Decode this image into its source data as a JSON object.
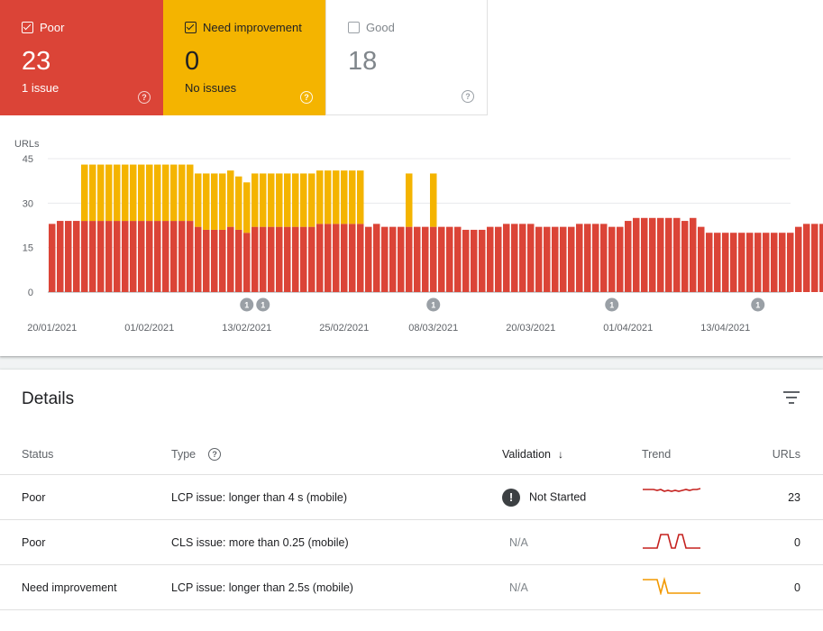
{
  "tiles": {
    "poor": {
      "label": "Poor",
      "count": "23",
      "sub": "1 issue",
      "checked": true,
      "color": "#db4437"
    },
    "need": {
      "label": "Need improvement",
      "count": "0",
      "sub": "No issues",
      "checked": true,
      "color": "#f4b400"
    },
    "good": {
      "label": "Good",
      "count": "18",
      "checked": false
    }
  },
  "help_glyph": "?",
  "chart_data": {
    "type": "bar",
    "stacked": true,
    "ylabel": "URLs",
    "yticks": [
      "0",
      "15",
      "30",
      "45"
    ],
    "ylim": [
      0,
      45
    ],
    "xtick_labels": [
      "20/01/2021",
      "01/02/2021",
      "13/02/2021",
      "25/02/2021",
      "08/03/2021",
      "20/03/2021",
      "01/04/2021",
      "13/04/2021"
    ],
    "start_date": "2021-01-20",
    "series": [
      {
        "name": "Poor",
        "color": "#db4437",
        "values": [
          23,
          24,
          24,
          24,
          24,
          24,
          24,
          24,
          24,
          24,
          24,
          24,
          24,
          24,
          24,
          24,
          24,
          24,
          22,
          21,
          21,
          21,
          22,
          21,
          20,
          22,
          22,
          22,
          22,
          22,
          22,
          22,
          22,
          23,
          23,
          23,
          23,
          23,
          23,
          22,
          23,
          22,
          22,
          22,
          22,
          22,
          22,
          22,
          22,
          22,
          22,
          21,
          21,
          21,
          22,
          22,
          23,
          23,
          23,
          23,
          22,
          22,
          22,
          22,
          22,
          23,
          23,
          23,
          23,
          22,
          22,
          24,
          25,
          25,
          25,
          25,
          25,
          25,
          24,
          25,
          22,
          20,
          20,
          20,
          20,
          20,
          20,
          20,
          20,
          20,
          20,
          20,
          22,
          23,
          23,
          23,
          24,
          24,
          23
        ]
      },
      {
        "name": "Need improvement",
        "color": "#f4b400",
        "values": [
          0,
          0,
          0,
          0,
          19,
          19,
          19,
          19,
          19,
          19,
          19,
          19,
          19,
          19,
          19,
          19,
          19,
          19,
          18,
          19,
          19,
          19,
          19,
          18,
          17,
          18,
          18,
          18,
          18,
          18,
          18,
          18,
          18,
          18,
          18,
          18,
          18,
          18,
          18,
          0,
          0,
          0,
          0,
          0,
          18,
          0,
          0,
          18,
          0,
          0,
          0,
          0,
          0,
          0,
          0,
          0,
          0,
          0,
          0,
          0,
          0,
          0,
          0,
          0,
          0,
          0,
          0,
          0,
          0,
          0,
          0,
          0,
          0,
          0,
          0,
          0,
          0,
          0,
          0,
          0,
          0,
          0,
          0,
          0,
          0,
          0,
          0,
          0,
          0,
          0,
          0,
          0,
          0,
          0,
          0,
          0,
          0,
          0,
          0
        ]
      }
    ],
    "annotations": [
      {
        "date": "2021-02-13",
        "label": "1"
      },
      {
        "date": "2021-02-15",
        "label": "1"
      },
      {
        "date": "2021-03-08",
        "label": "1"
      },
      {
        "date": "2021-03-30",
        "label": "1"
      },
      {
        "date": "2021-04-17",
        "label": "1"
      }
    ],
    "grid": true
  },
  "details": {
    "title": "Details",
    "headers": {
      "status": "Status",
      "type": "Type",
      "validation": "Validation",
      "trend": "Trend",
      "urls": "URLs"
    },
    "rows": [
      {
        "status": "Poor",
        "status_kind": "poor",
        "type": "LCP issue: longer than 4 s (mobile)",
        "validation": "Not Started",
        "urls": "23",
        "trend_color": "#c5221f",
        "trend_values": [
          3,
          3,
          3,
          3,
          2.8,
          3,
          2.6,
          2.8,
          2.6,
          2.8,
          2.6,
          2.8,
          3,
          2.8,
          3,
          3,
          3.2
        ]
      },
      {
        "status": "Poor",
        "status_kind": "poor",
        "type": "CLS issue: more than 0.25 (mobile)",
        "validation": "N/A",
        "urls": "0",
        "trend_color": "#c5221f",
        "trend_values": [
          0,
          0,
          0,
          0,
          0,
          3,
          3,
          3,
          0,
          0,
          3,
          3,
          0,
          0,
          0,
          0,
          0
        ]
      },
      {
        "status": "Need improvement",
        "status_kind": "need",
        "type": "LCP issue: longer than 2.5s (mobile)",
        "validation": "N/A",
        "urls": "0",
        "trend_color": "#f29900",
        "trend_values": [
          3,
          3,
          3,
          3,
          3,
          0,
          3,
          0,
          0,
          0,
          0,
          0,
          0,
          0,
          0,
          0,
          0
        ]
      }
    ]
  },
  "icons": {
    "checkbox": "checkbox-icon",
    "help": "help-circle-icon",
    "filter": "filter-icon",
    "sort": "arrow-down-icon",
    "alert": "exclamation-circle-icon"
  }
}
